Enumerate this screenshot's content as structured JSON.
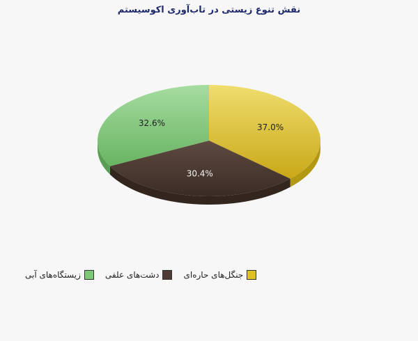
{
  "chart_data": {
    "type": "pie",
    "title": "نقش تنوع زیستی در تاب‌آوری  اکوسیستم",
    "slices": [
      {
        "name": "جنگل‌های حاره‌ای",
        "value": 37.0,
        "label": "37.0%",
        "color": "#e0c21f",
        "dark": "#b39812"
      },
      {
        "name": "دشت‌های  علفی",
        "value": 30.4,
        "label": "30.4%",
        "color": "#4e3c34",
        "dark": "#33261f"
      },
      {
        "name": "زیستگاه‌های آبی",
        "value": 32.6,
        "label": "32.6%",
        "color": "#7dc977",
        "dark": "#5a9e55"
      }
    ],
    "legend_position": "bottom-left",
    "style": "3d-tilted"
  }
}
